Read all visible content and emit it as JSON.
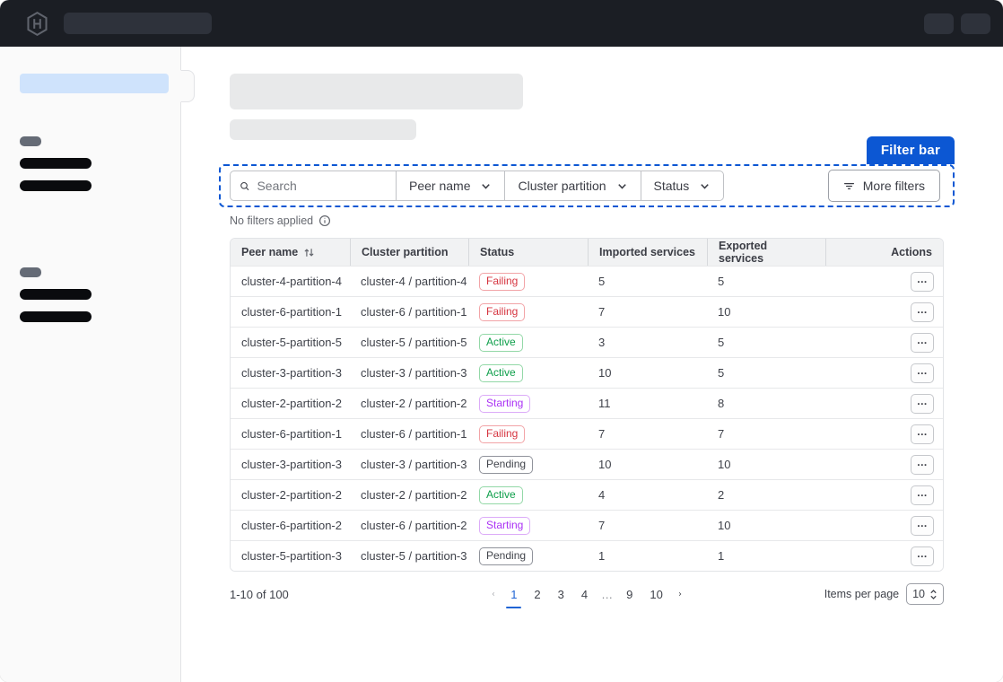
{
  "annotation": {
    "label": "Filter bar",
    "accent_color": "#0c57d3"
  },
  "filter_bar": {
    "search_placeholder": "Search",
    "dropdowns": [
      {
        "label": "Peer name"
      },
      {
        "label": "Cluster partition"
      },
      {
        "label": "Status"
      }
    ],
    "more_filters_label": "More filters",
    "applied_text": "No filters applied"
  },
  "table": {
    "columns": [
      "Peer name",
      "Cluster partition",
      "Status",
      "Imported services",
      "Exported services",
      "Actions"
    ],
    "rows": [
      {
        "peer": "cluster-4-partition-4",
        "partition": "cluster-4 / partition-4",
        "status": "Failing",
        "imported": "5",
        "exported": "5"
      },
      {
        "peer": "cluster-6-partition-1",
        "partition": "cluster-6 / partition-1",
        "status": "Failing",
        "imported": "7",
        "exported": "10"
      },
      {
        "peer": "cluster-5-partition-5",
        "partition": "cluster-5 / partition-5",
        "status": "Active",
        "imported": "3",
        "exported": "5"
      },
      {
        "peer": "cluster-3-partition-3",
        "partition": "cluster-3 / partition-3",
        "status": "Active",
        "imported": "10",
        "exported": "5"
      },
      {
        "peer": "cluster-2-partition-2",
        "partition": "cluster-2 / partition-2",
        "status": "Starting",
        "imported": "11",
        "exported": "8"
      },
      {
        "peer": "cluster-6-partition-1",
        "partition": "cluster-6 / partition-1",
        "status": "Failing",
        "imported": "7",
        "exported": "7"
      },
      {
        "peer": "cluster-3-partition-3",
        "partition": "cluster-3 / partition-3",
        "status": "Pending",
        "imported": "10",
        "exported": "10"
      },
      {
        "peer": "cluster-2-partition-2",
        "partition": "cluster-2 / partition-2",
        "status": "Active",
        "imported": "4",
        "exported": "2"
      },
      {
        "peer": "cluster-6-partition-2",
        "partition": "cluster-6 / partition-2",
        "status": "Starting",
        "imported": "7",
        "exported": "10"
      },
      {
        "peer": "cluster-5-partition-3",
        "partition": "cluster-5 / partition-3",
        "status": "Pending",
        "imported": "1",
        "exported": "1"
      }
    ],
    "status_styles": {
      "Failing": {
        "color": "#d63540",
        "border": "#f2a4a7"
      },
      "Active": {
        "color": "#0c9e49",
        "border": "#93d8a7"
      },
      "Starting": {
        "color": "#ab32f5",
        "border": "#dcabf8"
      },
      "Pending": {
        "color": "#42454c",
        "border": "#90939b"
      }
    },
    "actions_button_glyph": "..."
  },
  "pagination": {
    "range_text": "1-10 of 100",
    "pages": [
      "1",
      "2",
      "3",
      "4",
      "…",
      "9",
      "10"
    ],
    "active_page": "1",
    "items_per_page_label": "Items per page",
    "items_per_page_value": "10"
  }
}
